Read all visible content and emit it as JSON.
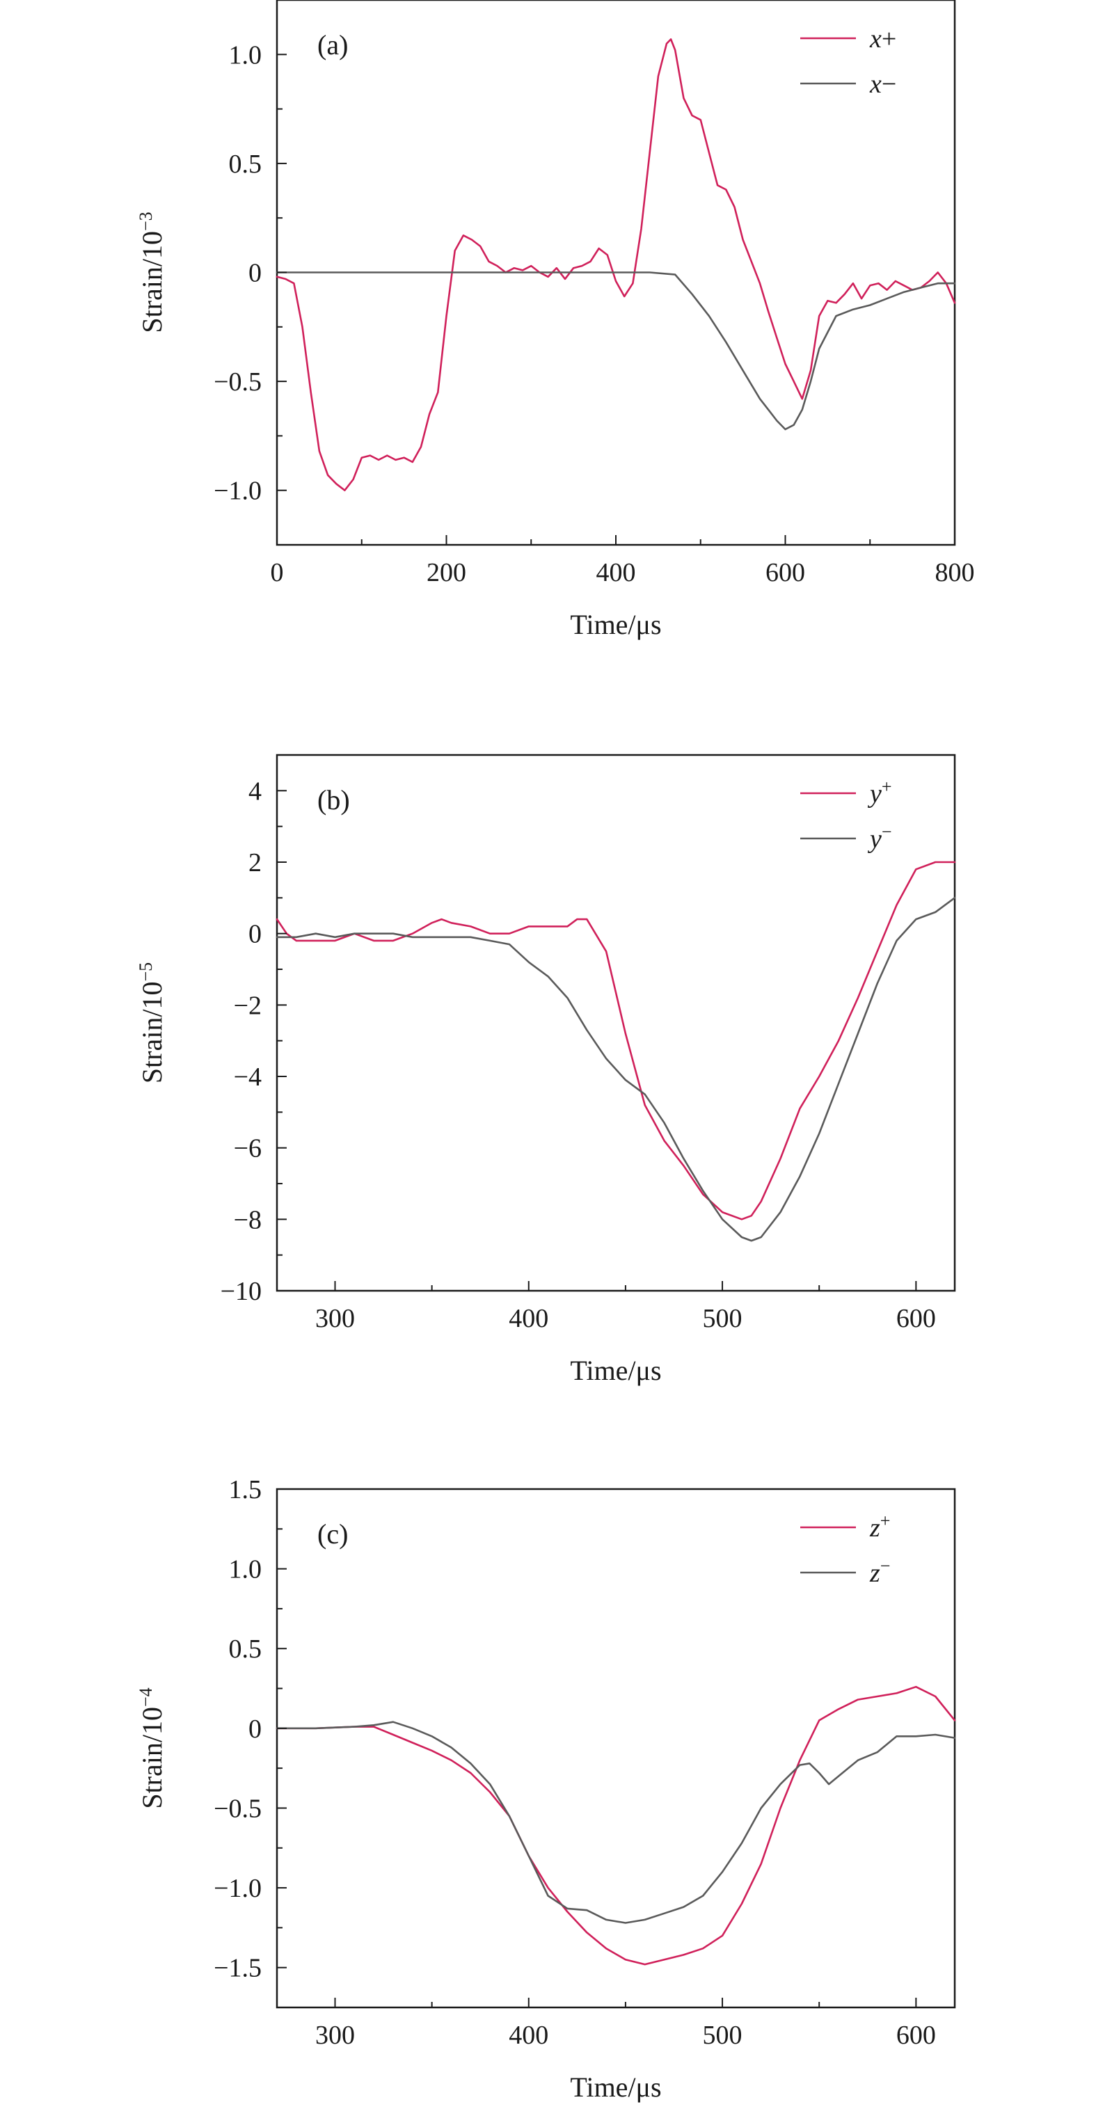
{
  "chart_data": [
    {
      "type": "line",
      "panel_label": "(a)",
      "xlabel": "Time/μs",
      "ylabel": "Strain/10",
      "ylabel_exp": "−3",
      "xlim": [
        0,
        800
      ],
      "ylim": [
        -1.25,
        1.25
      ],
      "xticks": [
        0,
        200,
        400,
        600,
        800
      ],
      "xtick_labels": [
        "0",
        "200",
        "400",
        "600",
        "800"
      ],
      "yticks": [
        -1.0,
        -0.5,
        0,
        0.5,
        1.0
      ],
      "ytick_labels": [
        "−1.0",
        "−0.5",
        "0",
        "0.5",
        "1.0"
      ],
      "grid": false,
      "legend_position": "top-right",
      "series": [
        {
          "name": "x+",
          "name_main": "x",
          "name_sup": "",
          "name_suffix": "+",
          "color": "#d0205a",
          "x": [
            0,
            10,
            20,
            30,
            40,
            50,
            60,
            70,
            80,
            90,
            100,
            110,
            120,
            130,
            140,
            150,
            160,
            170,
            180,
            190,
            200,
            210,
            220,
            230,
            240,
            250,
            260,
            270,
            280,
            290,
            300,
            310,
            320,
            330,
            340,
            350,
            360,
            370,
            380,
            390,
            400,
            410,
            420,
            430,
            440,
            450,
            460,
            465,
            470,
            480,
            490,
            500,
            510,
            520,
            530,
            540,
            550,
            560,
            570,
            580,
            590,
            600,
            610,
            620,
            630,
            640,
            650,
            660,
            670,
            680,
            690,
            700,
            710,
            720,
            730,
            740,
            750,
            760,
            770,
            780,
            790,
            800
          ],
          "y": [
            -0.02,
            -0.03,
            -0.05,
            -0.25,
            -0.55,
            -0.82,
            -0.93,
            -0.97,
            -1.0,
            -0.95,
            -0.85,
            -0.84,
            -0.86,
            -0.84,
            -0.86,
            -0.85,
            -0.87,
            -0.8,
            -0.65,
            -0.55,
            -0.2,
            0.1,
            0.17,
            0.15,
            0.12,
            0.05,
            0.03,
            0.0,
            0.02,
            0.01,
            0.03,
            0.0,
            -0.02,
            0.02,
            -0.03,
            0.02,
            0.03,
            0.05,
            0.11,
            0.08,
            -0.04,
            -0.11,
            -0.05,
            0.2,
            0.55,
            0.9,
            1.05,
            1.07,
            1.02,
            0.8,
            0.72,
            0.7,
            0.55,
            0.4,
            0.38,
            0.3,
            0.15,
            0.05,
            -0.05,
            -0.18,
            -0.3,
            -0.42,
            -0.5,
            -0.58,
            -0.45,
            -0.2,
            -0.13,
            -0.14,
            -0.1,
            -0.05,
            -0.12,
            -0.06,
            -0.05,
            -0.08,
            -0.04,
            -0.06,
            -0.08,
            -0.07,
            -0.04,
            0.0,
            -0.05,
            -0.14
          ]
        },
        {
          "name": "x−",
          "name_main": "x",
          "name_sup": "",
          "name_suffix": "−",
          "color": "#5a5a5a",
          "x": [
            0,
            50,
            100,
            150,
            200,
            250,
            300,
            350,
            400,
            440,
            470,
            490,
            510,
            530,
            550,
            570,
            580,
            590,
            600,
            610,
            620,
            630,
            640,
            660,
            680,
            700,
            720,
            740,
            760,
            780,
            800
          ],
          "y": [
            0.0,
            0.0,
            0.0,
            0.0,
            0.0,
            0.0,
            0.0,
            0.0,
            0.0,
            0.0,
            -0.01,
            -0.1,
            -0.2,
            -0.32,
            -0.45,
            -0.58,
            -0.63,
            -0.68,
            -0.72,
            -0.7,
            -0.63,
            -0.5,
            -0.35,
            -0.2,
            -0.17,
            -0.15,
            -0.12,
            -0.09,
            -0.07,
            -0.05,
            -0.05
          ]
        }
      ]
    },
    {
      "type": "line",
      "panel_label": "(b)",
      "xlabel": "Time/μs",
      "ylabel": "Strain/10",
      "ylabel_exp": "−5",
      "xlim": [
        270,
        620
      ],
      "ylim": [
        -10,
        5
      ],
      "xticks": [
        300,
        400,
        500,
        600
      ],
      "xtick_labels": [
        "300",
        "400",
        "500",
        "600"
      ],
      "yticks": [
        -10,
        -8,
        -6,
        -4,
        -2,
        0,
        2,
        4
      ],
      "ytick_labels": [
        "−10",
        "−8",
        "−6",
        "−4",
        "−2",
        "0",
        "2",
        "4"
      ],
      "grid": false,
      "legend_position": "top-right",
      "series": [
        {
          "name": "y+",
          "name_main": "y",
          "name_sup": "+",
          "name_suffix": "",
          "color": "#d0205a",
          "x": [
            270,
            275,
            280,
            290,
            300,
            310,
            320,
            330,
            340,
            350,
            355,
            360,
            370,
            380,
            390,
            400,
            410,
            420,
            425,
            430,
            440,
            450,
            460,
            470,
            480,
            490,
            500,
            510,
            515,
            520,
            530,
            540,
            550,
            560,
            570,
            580,
            590,
            600,
            610,
            620
          ],
          "y": [
            0.4,
            0.0,
            -0.2,
            -0.2,
            -0.2,
            0.0,
            -0.2,
            -0.2,
            0.0,
            0.3,
            0.4,
            0.3,
            0.2,
            0.0,
            0.0,
            0.2,
            0.2,
            0.2,
            0.4,
            0.4,
            -0.5,
            -2.8,
            -4.8,
            -5.8,
            -6.5,
            -7.3,
            -7.8,
            -8.0,
            -7.9,
            -7.5,
            -6.3,
            -4.9,
            -4.0,
            -3.0,
            -1.8,
            -0.5,
            0.8,
            1.8,
            2.0,
            2.0
          ]
        },
        {
          "name": "y−",
          "name_main": "y",
          "name_sup": "−",
          "name_suffix": "",
          "color": "#5a5a5a",
          "x": [
            270,
            280,
            290,
            300,
            310,
            320,
            330,
            340,
            350,
            360,
            370,
            380,
            390,
            400,
            410,
            420,
            430,
            440,
            450,
            460,
            470,
            480,
            490,
            500,
            510,
            515,
            520,
            530,
            540,
            550,
            560,
            570,
            580,
            590,
            600,
            610,
            620
          ],
          "y": [
            -0.1,
            -0.1,
            0.0,
            -0.1,
            0.0,
            0.0,
            0.0,
            -0.1,
            -0.1,
            -0.1,
            -0.1,
            -0.2,
            -0.3,
            -0.8,
            -1.2,
            -1.8,
            -2.7,
            -3.5,
            -4.1,
            -4.5,
            -5.3,
            -6.3,
            -7.2,
            -8.0,
            -8.5,
            -8.6,
            -8.5,
            -7.8,
            -6.8,
            -5.6,
            -4.2,
            -2.8,
            -1.4,
            -0.2,
            0.4,
            0.6,
            1.0
          ]
        }
      ]
    },
    {
      "type": "line",
      "panel_label": "(c)",
      "xlabel": "Time/μs",
      "ylabel": "Strain/10",
      "ylabel_exp": "−4",
      "xlim": [
        270,
        620
      ],
      "ylim": [
        -1.75,
        1.5
      ],
      "xticks": [
        300,
        400,
        500,
        600
      ],
      "xtick_labels": [
        "300",
        "400",
        "500",
        "600"
      ],
      "yticks": [
        -1.5,
        -1.0,
        -0.5,
        0,
        0.5,
        1.0,
        1.5
      ],
      "ytick_labels": [
        "−1.5",
        "−1.0",
        "−0.5",
        "0",
        "0.5",
        "1.0",
        "1.5"
      ],
      "grid": false,
      "legend_position": "top-right",
      "series": [
        {
          "name": "z+",
          "name_main": "z",
          "name_sup": "+",
          "name_suffix": "",
          "color": "#d0205a",
          "x": [
            270,
            290,
            310,
            320,
            330,
            340,
            350,
            360,
            370,
            380,
            390,
            400,
            410,
            420,
            430,
            440,
            450,
            460,
            470,
            480,
            490,
            500,
            510,
            520,
            530,
            540,
            550,
            560,
            570,
            580,
            590,
            600,
            610,
            620
          ],
          "y": [
            0.0,
            0.0,
            0.01,
            0.01,
            -0.04,
            -0.09,
            -0.14,
            -0.2,
            -0.28,
            -0.4,
            -0.55,
            -0.8,
            -1.0,
            -1.15,
            -1.28,
            -1.38,
            -1.45,
            -1.48,
            -1.45,
            -1.42,
            -1.38,
            -1.3,
            -1.1,
            -0.85,
            -0.5,
            -0.2,
            0.05,
            0.12,
            0.18,
            0.2,
            0.22,
            0.26,
            0.2,
            0.05
          ]
        },
        {
          "name": "z−",
          "name_main": "z",
          "name_sup": "−",
          "name_suffix": "",
          "color": "#5a5a5a",
          "x": [
            270,
            290,
            310,
            320,
            330,
            340,
            350,
            360,
            370,
            380,
            390,
            400,
            410,
            420,
            430,
            440,
            450,
            460,
            470,
            480,
            490,
            500,
            510,
            520,
            530,
            540,
            545,
            550,
            555,
            560,
            570,
            580,
            590,
            600,
            610,
            620
          ],
          "y": [
            0.0,
            0.0,
            0.01,
            0.02,
            0.04,
            0.0,
            -0.05,
            -0.12,
            -0.22,
            -0.35,
            -0.55,
            -0.8,
            -1.05,
            -1.13,
            -1.14,
            -1.2,
            -1.22,
            -1.2,
            -1.16,
            -1.12,
            -1.05,
            -0.9,
            -0.72,
            -0.5,
            -0.35,
            -0.23,
            -0.22,
            -0.28,
            -0.35,
            -0.3,
            -0.2,
            -0.15,
            -0.05,
            -0.05,
            -0.04,
            -0.06
          ]
        }
      ]
    }
  ]
}
